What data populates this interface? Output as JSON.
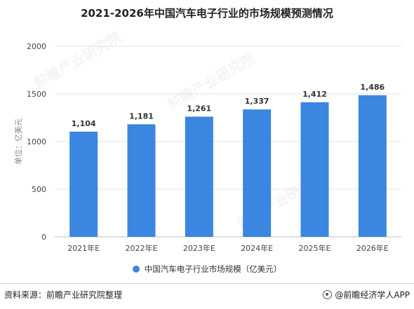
{
  "title": "2021-2026年中国汽车电子行业的市场规模预测情况",
  "watermark_text": "前瞻产业研究院",
  "footer": {
    "source": "资料来源：前瞻产业研究院整理",
    "brand": "@前瞻经济学人APP"
  },
  "chart_data": {
    "type": "bar",
    "categories": [
      "2021年E",
      "2022年E",
      "2023年E",
      "2024年E",
      "2025年E",
      "2026年E"
    ],
    "series": [
      {
        "name": "中国汽车电子行业市场规模（亿美元）",
        "values": [
          1104,
          1181,
          1261,
          1337,
          1412,
          1486
        ],
        "labels": [
          "1,104",
          "1,181",
          "1,261",
          "1,337",
          "1,412",
          "1,486"
        ],
        "color": "#3a86e0"
      }
    ],
    "ylabel": "单位：亿美元",
    "ylim": [
      0,
      2000
    ],
    "yticks": [
      0,
      500,
      1000,
      1500,
      2000
    ],
    "grid": true,
    "legend_position": "bottom"
  }
}
